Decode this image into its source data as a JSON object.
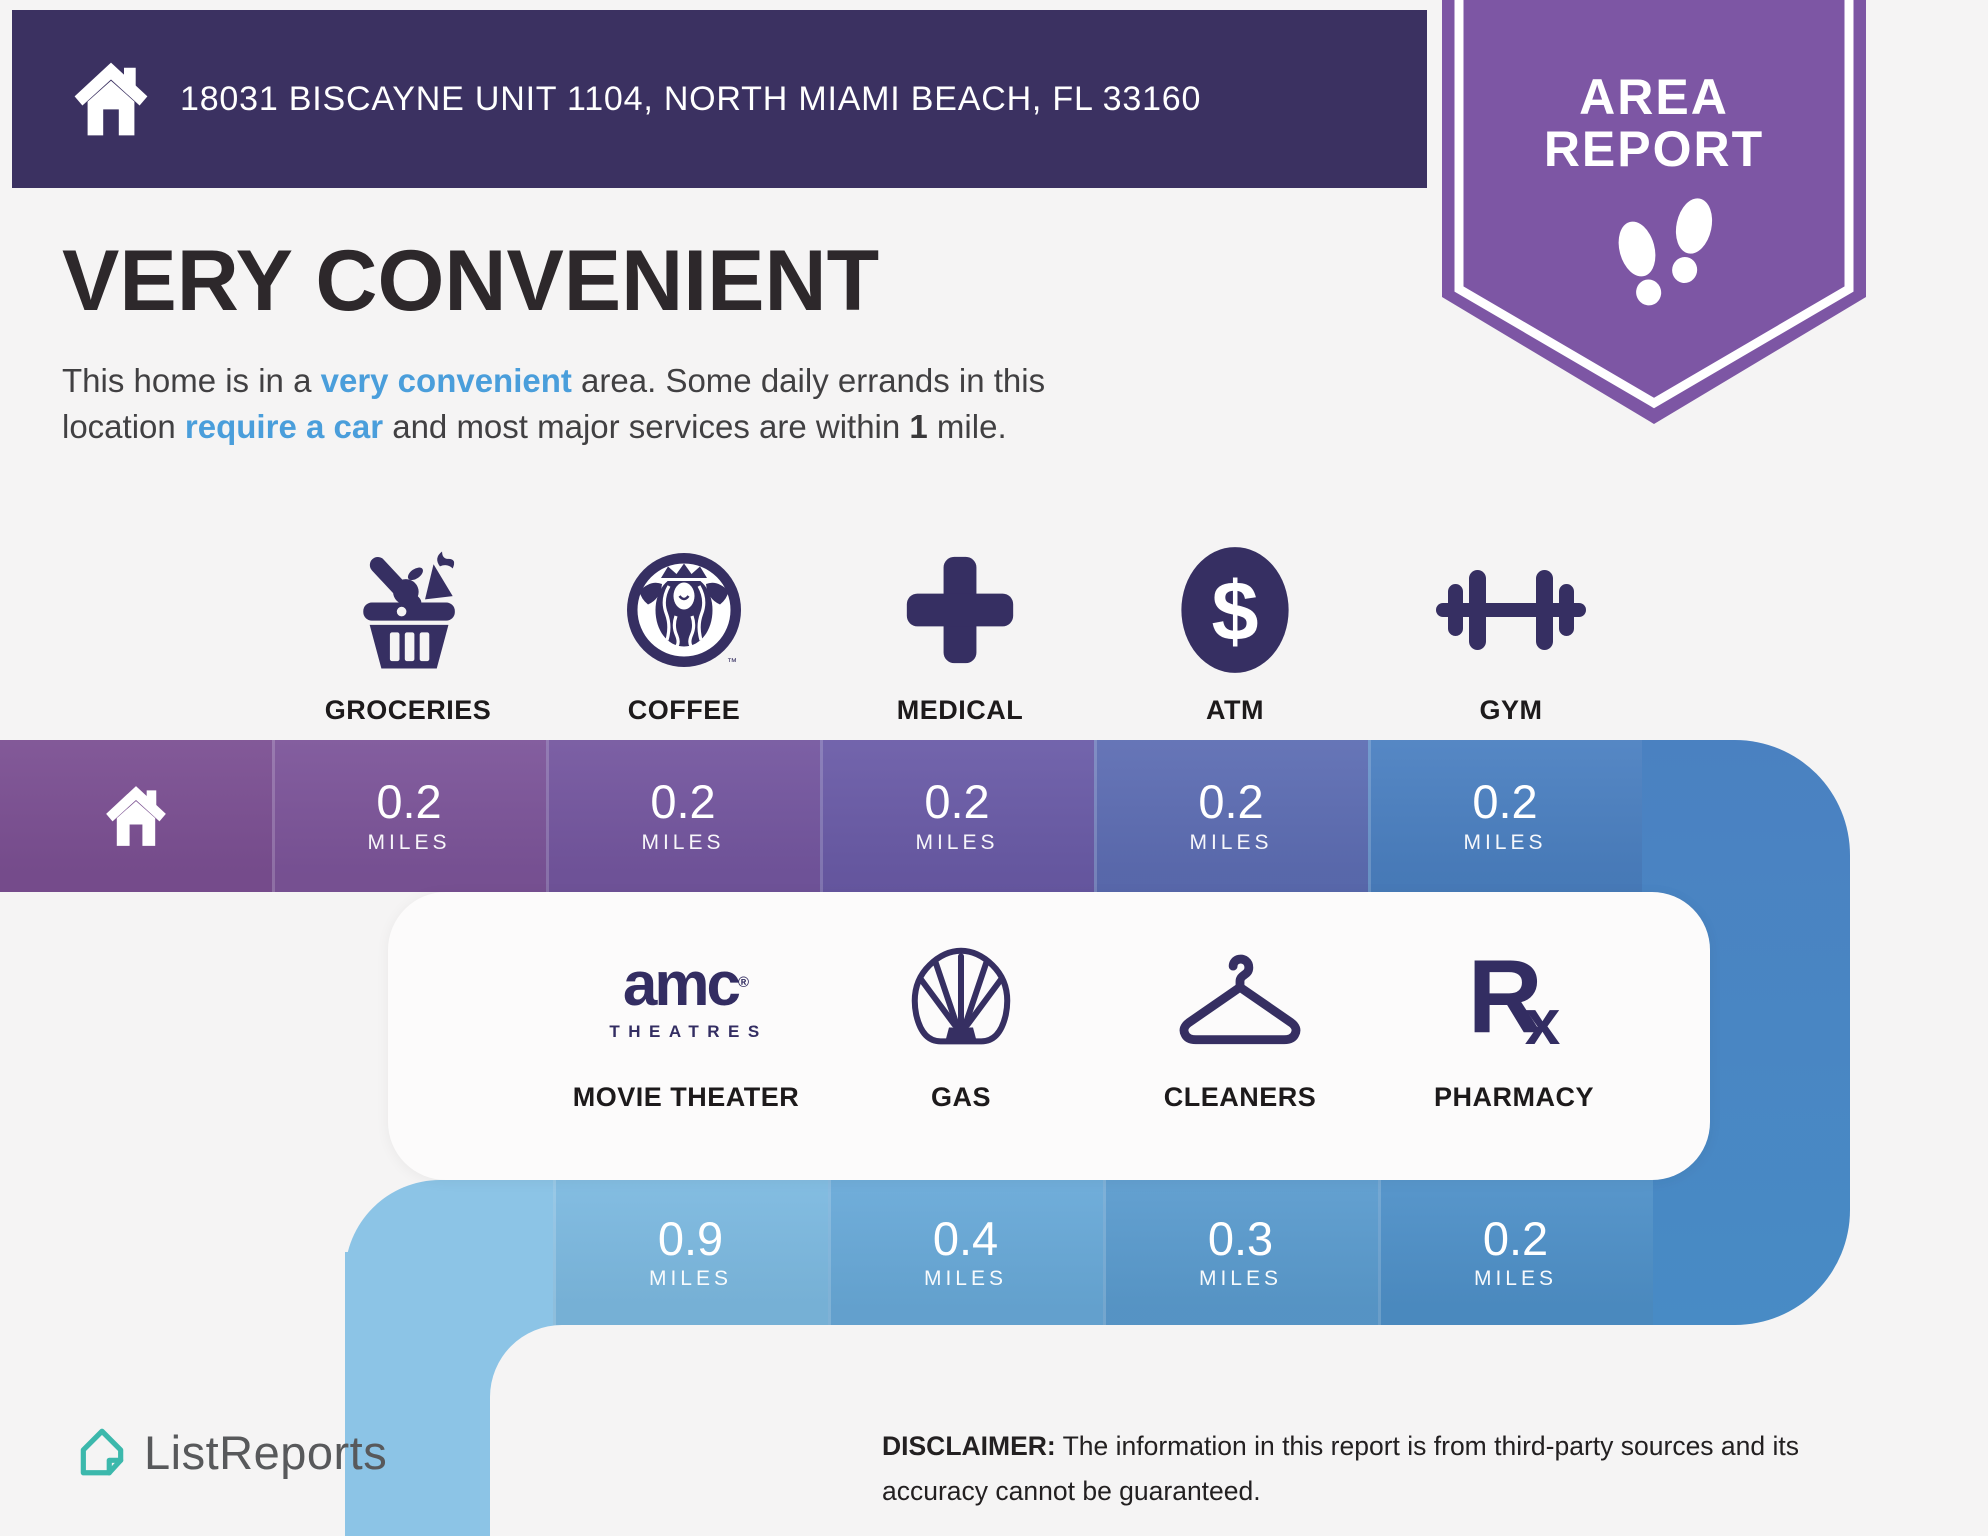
{
  "header": {
    "address": "18031 BISCAYNE UNIT 1104, NORTH MIAMI BEACH, FL 33160",
    "bar_color": "#3b3161"
  },
  "badge": {
    "line1": "AREA",
    "line2": "REPORT",
    "ribbon_color": "#7d56a4",
    "icon": "footprints-icon"
  },
  "title": "VERY CONVENIENT",
  "subtitle_segments": [
    {
      "text": "This home is in a ",
      "style": "normal"
    },
    {
      "text": "very convenient",
      "style": "blue-bold"
    },
    {
      "text": " area. Some daily errands in this location ",
      "style": "normal"
    },
    {
      "text": "require a car",
      "style": "blue-bold"
    },
    {
      "text": " and most major services are within ",
      "style": "normal"
    },
    {
      "text": "1",
      "style": "dark-bold"
    },
    {
      "text": " mile.",
      "style": "normal"
    }
  ],
  "accent_blue": "#4a9edb",
  "home_cell": {
    "icon": "home-icon",
    "color": "#7b4f92"
  },
  "rows": [
    {
      "items": [
        {
          "label": "GROCERIES",
          "icon": "groceries-basket-icon",
          "distance": "0.2",
          "unit": "MILES",
          "cell_color": "#7c5499"
        },
        {
          "label": "COFFEE",
          "icon": "starbucks-siren-icon",
          "distance": "0.2",
          "unit": "MILES",
          "cell_color": "#74569f"
        },
        {
          "label": "MEDICAL",
          "icon": "medical-cross-icon",
          "distance": "0.2",
          "unit": "MILES",
          "cell_color": "#6a5ba7"
        },
        {
          "label": "ATM",
          "icon": "dollar-ellipse-icon",
          "distance": "0.2",
          "unit": "MILES",
          "cell_color": "#5d6db3"
        },
        {
          "label": "GYM",
          "icon": "dumbbell-icon",
          "distance": "0.2",
          "unit": "MILES",
          "cell_color": "#4b80c1"
        }
      ]
    },
    {
      "items": [
        {
          "label": "MOVIE THEATER",
          "icon": "amc-theatres-logo",
          "brand_main": "amc",
          "brand_reg": "®",
          "brand_sub": "THEATRES",
          "distance": "0.9",
          "unit": "MILES",
          "cell_color": "#7cb9e0"
        },
        {
          "label": "GAS",
          "icon": "shell-logo-icon",
          "distance": "0.4",
          "unit": "MILES",
          "cell_color": "#68a9d8"
        },
        {
          "label": "CLEANERS",
          "icon": "hanger-icon",
          "distance": "0.3",
          "unit": "MILES",
          "cell_color": "#5a9bce"
        },
        {
          "label": "PHARMACY",
          "icon": "rx-icon",
          "brand_main": "R",
          "brand_sub": "x",
          "distance": "0.2",
          "unit": "MILES",
          "cell_color": "#4e90c8"
        }
      ]
    }
  ],
  "path_colors": {
    "band1_tail_top": "#4a81c1",
    "right_column_bottom": "#488bc5",
    "band2_corner": "#8cc4e6",
    "left_strip": "#8cc4e6",
    "icon_navy": "#362f62"
  },
  "footer": {
    "logo_text": "ListReports",
    "logo_color": "#3cb8ac",
    "disclaimer_bold": "DISCLAIMER:",
    "disclaimer_text": " The information in this report is from third-party sources and its accuracy cannot be guaranteed."
  }
}
